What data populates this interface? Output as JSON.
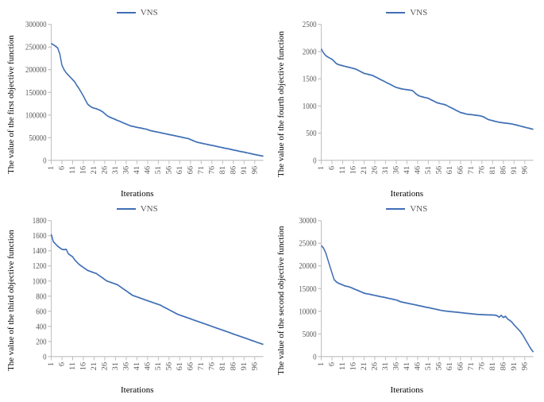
{
  "global": {
    "line_color": "#3f6fb5",
    "axis_color": "#bfbfbf",
    "background_color": "#ffffff",
    "tick_color": "#5a5a5a",
    "font_family": "Times New Roman",
    "title_fontsize": 11,
    "tick_fontsize": 9,
    "legend_fontsize": 11,
    "xticks": [
      1,
      6,
      11,
      16,
      21,
      26,
      31,
      36,
      41,
      46,
      51,
      56,
      61,
      66,
      71,
      76,
      81,
      86,
      91,
      96
    ],
    "xlim": [
      1,
      100
    ],
    "xlabel": "Iterations",
    "legend_label": "VNS"
  },
  "panels": [
    {
      "id": "first",
      "ylabel": "The value of the first objective function",
      "ylim": [
        0,
        300000
      ],
      "ytick_step": 50000,
      "yticks": [
        0,
        50000,
        100000,
        150000,
        200000,
        250000,
        300000
      ],
      "type": "line",
      "series": {
        "name": "VNS",
        "color": "#3f6fb5",
        "values": [
          258000,
          255000,
          252000,
          248000,
          235000,
          210000,
          200000,
          193000,
          188000,
          183000,
          178000,
          173000,
          165000,
          158000,
          150000,
          142000,
          133000,
          124000,
          120000,
          117000,
          115000,
          114000,
          112000,
          110000,
          107000,
          103000,
          99000,
          96000,
          94000,
          92000,
          90000,
          88000,
          86000,
          84000,
          82000,
          80000,
          78000,
          76000,
          75000,
          74000,
          73000,
          72000,
          71000,
          70000,
          69000,
          68000,
          66000,
          65000,
          64000,
          63000,
          62000,
          61000,
          60000,
          59000,
          58000,
          57000,
          56000,
          55000,
          54000,
          53000,
          52000,
          51000,
          50000,
          49000,
          48000,
          46000,
          44000,
          42000,
          40000,
          39000,
          38000,
          37000,
          36000,
          35000,
          34000,
          33000,
          32000,
          31000,
          30000,
          29000,
          28000,
          27000,
          26000,
          25000,
          24000,
          23000,
          22000,
          21000,
          20000,
          19000,
          18000,
          17000,
          16000,
          15000,
          14000,
          13000,
          12000,
          11000,
          10000,
          9000
        ]
      }
    },
    {
      "id": "fourth",
      "ylabel": "The value of the fourth objective function",
      "ylim": [
        0,
        2500
      ],
      "ytick_step": 500,
      "yticks": [
        0,
        500,
        1000,
        1500,
        2000,
        2500
      ],
      "type": "line",
      "series": {
        "name": "VNS",
        "color": "#3f6fb5",
        "values": [
          2050,
          1980,
          1930,
          1900,
          1880,
          1860,
          1820,
          1780,
          1760,
          1750,
          1740,
          1730,
          1720,
          1710,
          1700,
          1690,
          1680,
          1660,
          1640,
          1620,
          1600,
          1590,
          1580,
          1570,
          1560,
          1540,
          1520,
          1500,
          1480,
          1460,
          1440,
          1420,
          1400,
          1380,
          1360,
          1340,
          1330,
          1320,
          1310,
          1305,
          1300,
          1295,
          1290,
          1270,
          1230,
          1200,
          1180,
          1170,
          1160,
          1150,
          1140,
          1120,
          1100,
          1080,
          1060,
          1050,
          1040,
          1030,
          1020,
          1000,
          980,
          960,
          940,
          920,
          900,
          880,
          870,
          860,
          850,
          845,
          840,
          835,
          830,
          825,
          820,
          810,
          795,
          770,
          750,
          740,
          730,
          720,
          710,
          700,
          695,
          690,
          685,
          680,
          675,
          670,
          660,
          650,
          640,
          630,
          620,
          610,
          600,
          590,
          580,
          570
        ]
      }
    },
    {
      "id": "third",
      "ylabel": "The value of the third objective function",
      "ylim": [
        0,
        1800
      ],
      "ytick_step": 200,
      "yticks": [
        0,
        200,
        400,
        600,
        800,
        1000,
        1200,
        1400,
        1600,
        1800
      ],
      "type": "line",
      "series": {
        "name": "VNS",
        "color": "#3f6fb5",
        "values": [
          1620,
          1520,
          1490,
          1460,
          1440,
          1420,
          1415,
          1420,
          1360,
          1340,
          1320,
          1280,
          1250,
          1220,
          1200,
          1180,
          1160,
          1140,
          1130,
          1120,
          1110,
          1100,
          1080,
          1060,
          1040,
          1020,
          1000,
          990,
          980,
          970,
          960,
          950,
          930,
          910,
          890,
          870,
          850,
          830,
          810,
          800,
          790,
          780,
          770,
          760,
          750,
          740,
          730,
          720,
          710,
          700,
          690,
          680,
          665,
          650,
          635,
          620,
          605,
          590,
          575,
          560,
          550,
          540,
          530,
          520,
          510,
          500,
          490,
          480,
          470,
          460,
          450,
          440,
          430,
          420,
          410,
          400,
          390,
          380,
          370,
          360,
          350,
          340,
          330,
          320,
          310,
          300,
          290,
          280,
          270,
          260,
          250,
          240,
          230,
          220,
          210,
          200,
          190,
          180,
          170,
          160
        ]
      }
    },
    {
      "id": "second",
      "ylabel": "The value of the second objective function",
      "ylim": [
        0,
        30000
      ],
      "ytick_step": 5000,
      "yticks": [
        0,
        5000,
        10000,
        15000,
        20000,
        25000,
        30000
      ],
      "type": "line",
      "series": {
        "name": "VNS",
        "color": "#3f6fb5",
        "values": [
          24500,
          24000,
          23000,
          21500,
          20000,
          18500,
          17000,
          16500,
          16200,
          16000,
          15800,
          15600,
          15500,
          15400,
          15200,
          15000,
          14800,
          14600,
          14400,
          14200,
          14000,
          13900,
          13800,
          13700,
          13600,
          13500,
          13400,
          13300,
          13200,
          13100,
          13000,
          12900,
          12800,
          12700,
          12600,
          12500,
          12300,
          12100,
          12000,
          11900,
          11800,
          11700,
          11600,
          11500,
          11400,
          11300,
          11200,
          11100,
          11000,
          10900,
          10800,
          10700,
          10600,
          10500,
          10400,
          10300,
          10200,
          10100,
          10050,
          10000,
          9950,
          9900,
          9850,
          9800,
          9750,
          9700,
          9650,
          9600,
          9550,
          9500,
          9450,
          9400,
          9350,
          9300,
          9280,
          9260,
          9240,
          9220,
          9200,
          9180,
          9160,
          9140,
          9050,
          8700,
          9100,
          8600,
          8900,
          8300,
          8000,
          7600,
          7000,
          6500,
          6000,
          5500,
          4800,
          4000,
          3200,
          2400,
          1600,
          1000
        ]
      }
    }
  ]
}
